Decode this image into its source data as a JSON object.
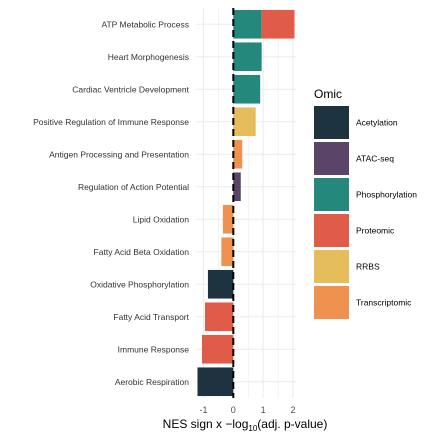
{
  "chart_data": {
    "type": "bar",
    "orientation": "horizontal",
    "stacked": true,
    "categories": [
      "ATP Metabolic Process",
      "Heart Morphogenesis",
      "Cardiac Ventricle Development",
      "Positive Regulation of Immune Response",
      "Antigen Processing and Presentation",
      "Regulation of Action Potential",
      "Lipid Oxidation",
      "Fatty Acid Beta Oxidation",
      "Oxidative Phosphorylation",
      "Fatty Acid Transport",
      "Immune Response",
      "Aerobic Respiration"
    ],
    "series": [
      {
        "name": "Acetylation",
        "color": "#1d3340",
        "values": [
          0,
          0,
          0,
          0,
          0,
          0,
          0,
          0,
          -0.85,
          0,
          0,
          -1.2
        ]
      },
      {
        "name": "ATAC-seq",
        "color": "#5a4569",
        "values": [
          0,
          0,
          0,
          0,
          0,
          0.25,
          0,
          0,
          0,
          0,
          0,
          0
        ]
      },
      {
        "name": "Phosphorylation",
        "color": "#24897c",
        "values": [
          0.95,
          0.95,
          0.9,
          0,
          0,
          0,
          0,
          0,
          0,
          0,
          0,
          0
        ]
      },
      {
        "name": "Proteomic",
        "color": "#e05b48",
        "values": [
          1.1,
          0,
          0,
          0,
          0,
          0,
          0,
          0,
          0,
          -0.95,
          -1.05,
          0
        ]
      },
      {
        "name": "RRBS",
        "color": "#e6bd5c",
        "values": [
          0,
          0,
          0,
          0.75,
          0,
          0,
          0,
          0,
          0,
          0,
          0,
          0
        ]
      },
      {
        "name": "Transcriptomic",
        "color": "#ef9250",
        "values": [
          0,
          0,
          0,
          0,
          0.3,
          0,
          -0.35,
          -0.4,
          0,
          0,
          0,
          0
        ]
      }
    ],
    "xlim": [
      -1.25,
      2.1
    ],
    "xticks": [
      "-1",
      "0",
      "1",
      "2"
    ],
    "xlabel_prefix": "NES sign x −log",
    "xlabel_sub": "10",
    "xlabel_suffix": "(adj. p-value)",
    "grid": true,
    "legend": {
      "title": "Omic",
      "placement": "right"
    }
  }
}
